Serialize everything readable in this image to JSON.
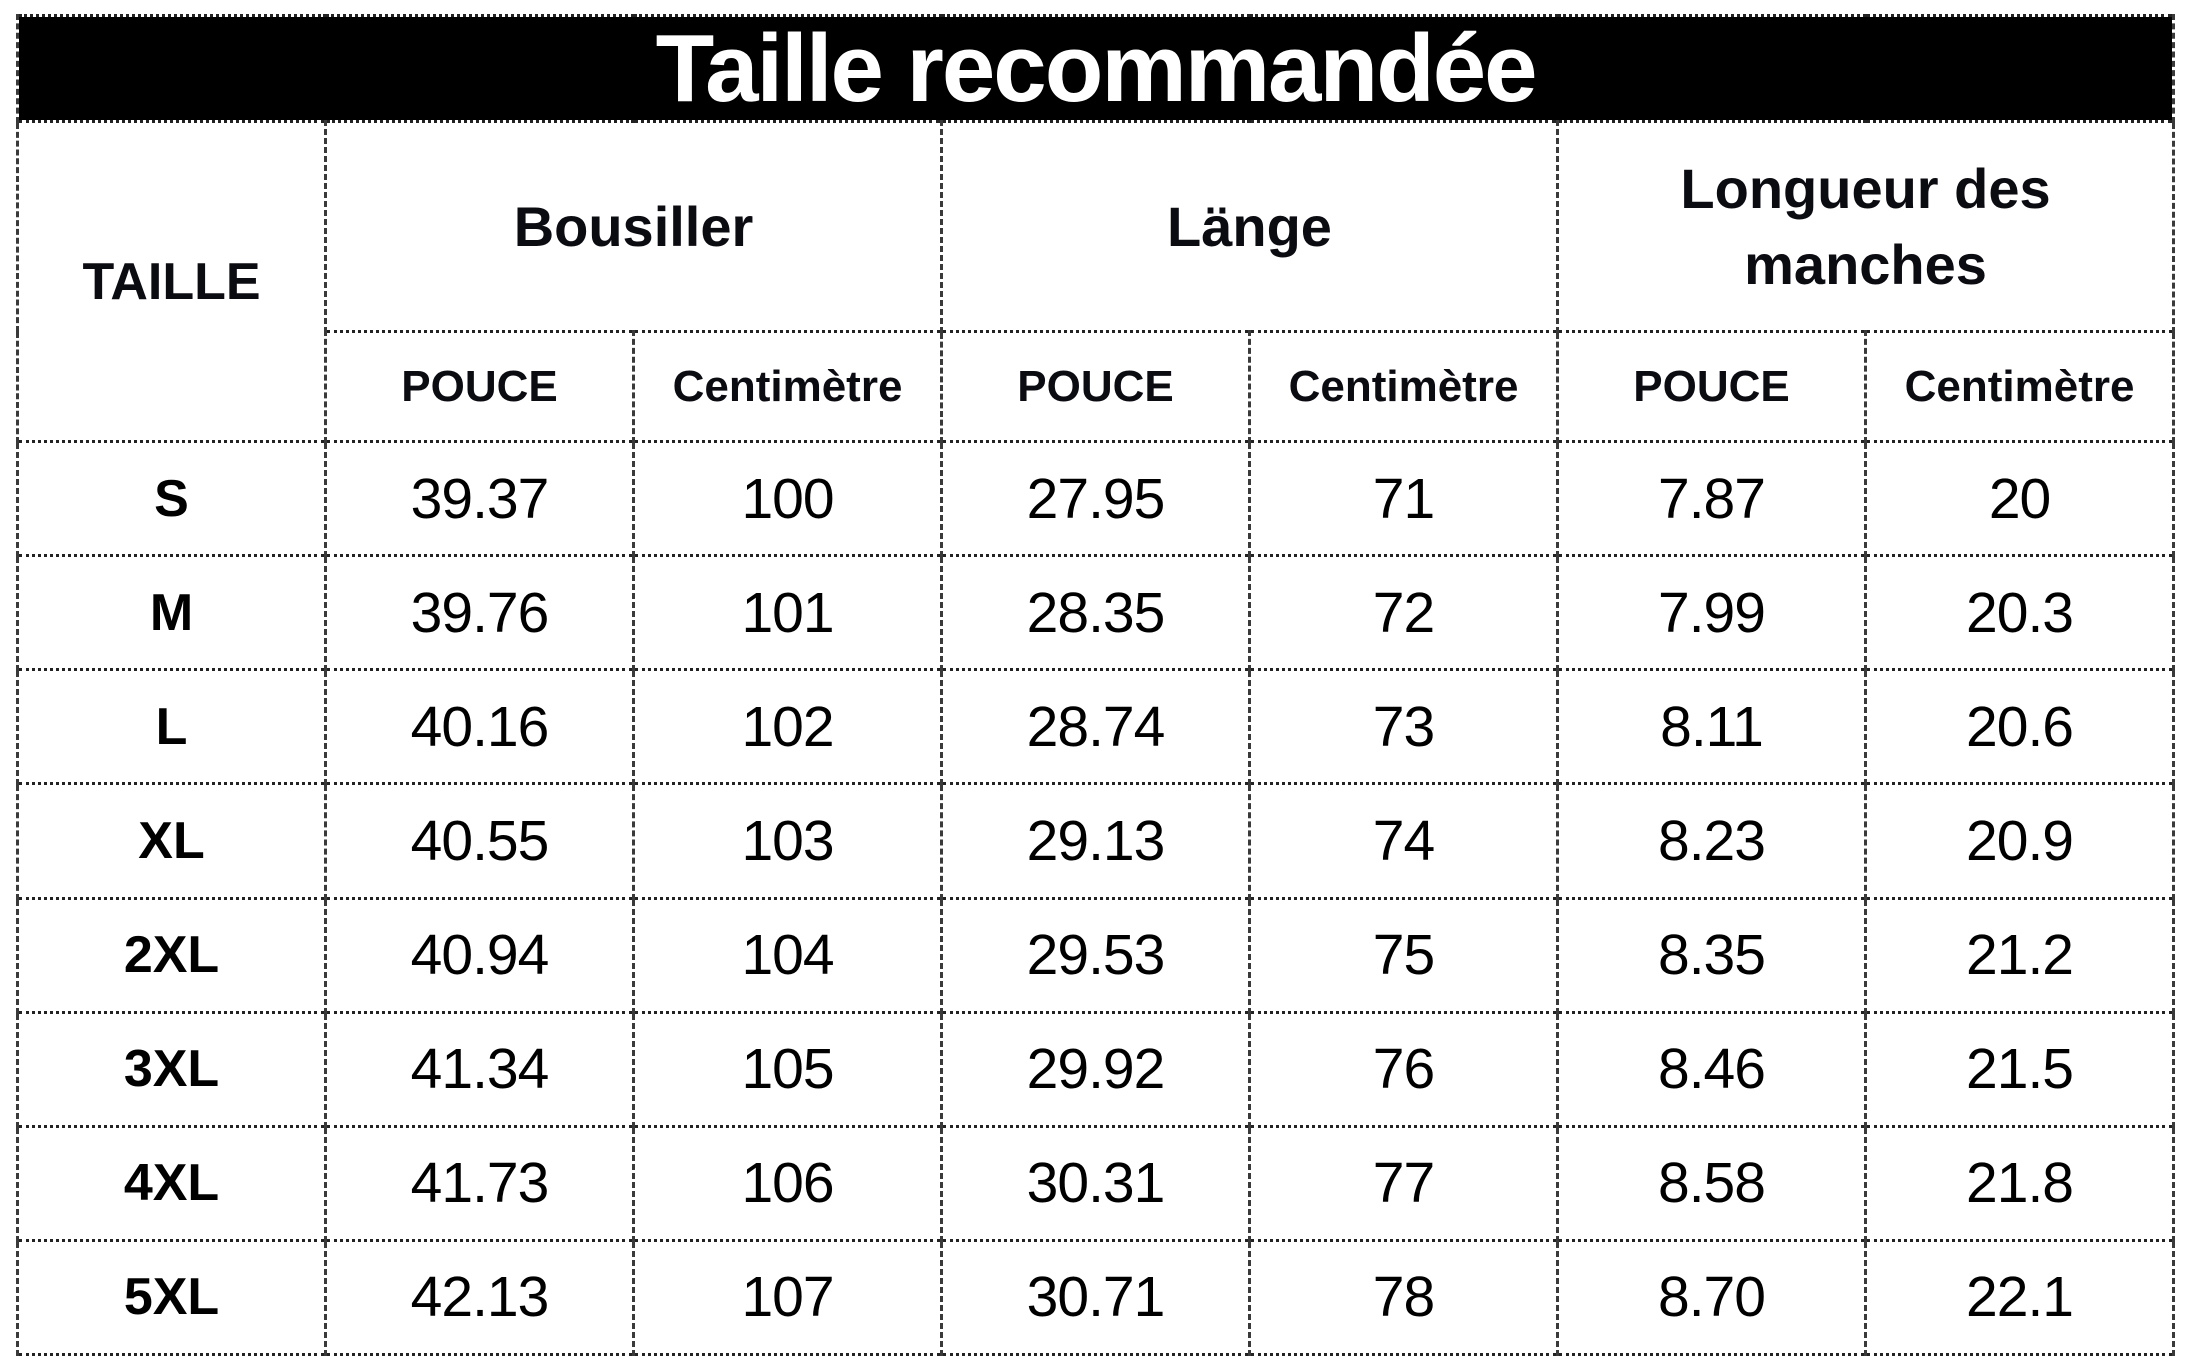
{
  "colors": {
    "banner_background": "#000000",
    "banner_text": "#ffffff",
    "body_background": "#ffffff",
    "text": "#000000",
    "border": "#333333"
  },
  "chart_data": {
    "type": "table",
    "title": "Taille recommandée",
    "corner_header": "TAILLE",
    "column_groups": [
      {
        "label": "Bousiller",
        "subcolumns": [
          "POUCE",
          "Centimètre"
        ]
      },
      {
        "label": "Länge",
        "subcolumns": [
          "POUCE",
          "Centimètre"
        ]
      },
      {
        "label": "Longueur des manches",
        "subcolumns": [
          "POUCE",
          "Centimètre"
        ]
      }
    ],
    "subheaders": [
      "POUCE",
      "Centimètre",
      "POUCE",
      "Centimètre",
      "POUCE",
      "Centimètre"
    ],
    "rows": [
      {
        "size": "S",
        "values": [
          "39.37",
          "100",
          "27.95",
          "71",
          "7.87",
          "20"
        ]
      },
      {
        "size": "M",
        "values": [
          "39.76",
          "101",
          "28.35",
          "72",
          "7.99",
          "20.3"
        ]
      },
      {
        "size": "L",
        "values": [
          "40.16",
          "102",
          "28.74",
          "73",
          "8.11",
          "20.6"
        ]
      },
      {
        "size": "XL",
        "values": [
          "40.55",
          "103",
          "29.13",
          "74",
          "8.23",
          "20.9"
        ]
      },
      {
        "size": "2XL",
        "values": [
          "40.94",
          "104",
          "29.53",
          "75",
          "8.35",
          "21.2"
        ]
      },
      {
        "size": "3XL",
        "values": [
          "41.34",
          "105",
          "29.92",
          "76",
          "8.46",
          "21.5"
        ]
      },
      {
        "size": "4XL",
        "values": [
          "41.73",
          "106",
          "30.31",
          "77",
          "8.58",
          "21.8"
        ]
      },
      {
        "size": "5XL",
        "values": [
          "42.13",
          "107",
          "30.71",
          "78",
          "8.70",
          "22.1"
        ]
      }
    ]
  }
}
